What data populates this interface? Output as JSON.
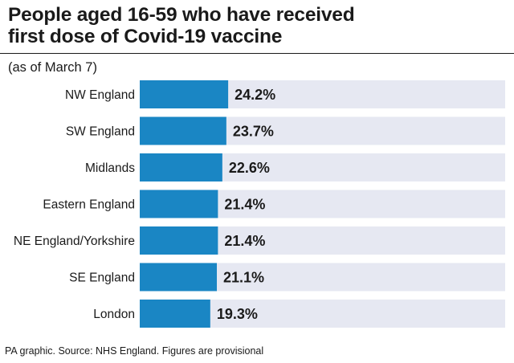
{
  "title_lines": [
    "People aged 16-59 who have received",
    "first dose of Covid-19 vaccine"
  ],
  "subtitle": "(as of March 7)",
  "footer": "PA graphic. Source: NHS England. Figures are provisional",
  "colors": {
    "bar": "#1a86c4",
    "track": "#e6e8f2",
    "text": "#1a1a1a"
  },
  "chart_data": {
    "type": "bar",
    "orientation": "horizontal",
    "categories": [
      "NW England",
      "SW England",
      "Midlands",
      "Eastern England",
      "NE England/Yorkshire",
      "SE England",
      "London"
    ],
    "values": [
      24.2,
      23.7,
      22.6,
      21.4,
      21.4,
      21.1,
      19.3
    ],
    "value_labels": [
      "24.2%",
      "23.7%",
      "22.6%",
      "21.4%",
      "21.4%",
      "21.1%",
      "19.3%"
    ],
    "xlim": [
      0,
      100
    ],
    "unit": "%",
    "grid": false,
    "legend": "none"
  }
}
